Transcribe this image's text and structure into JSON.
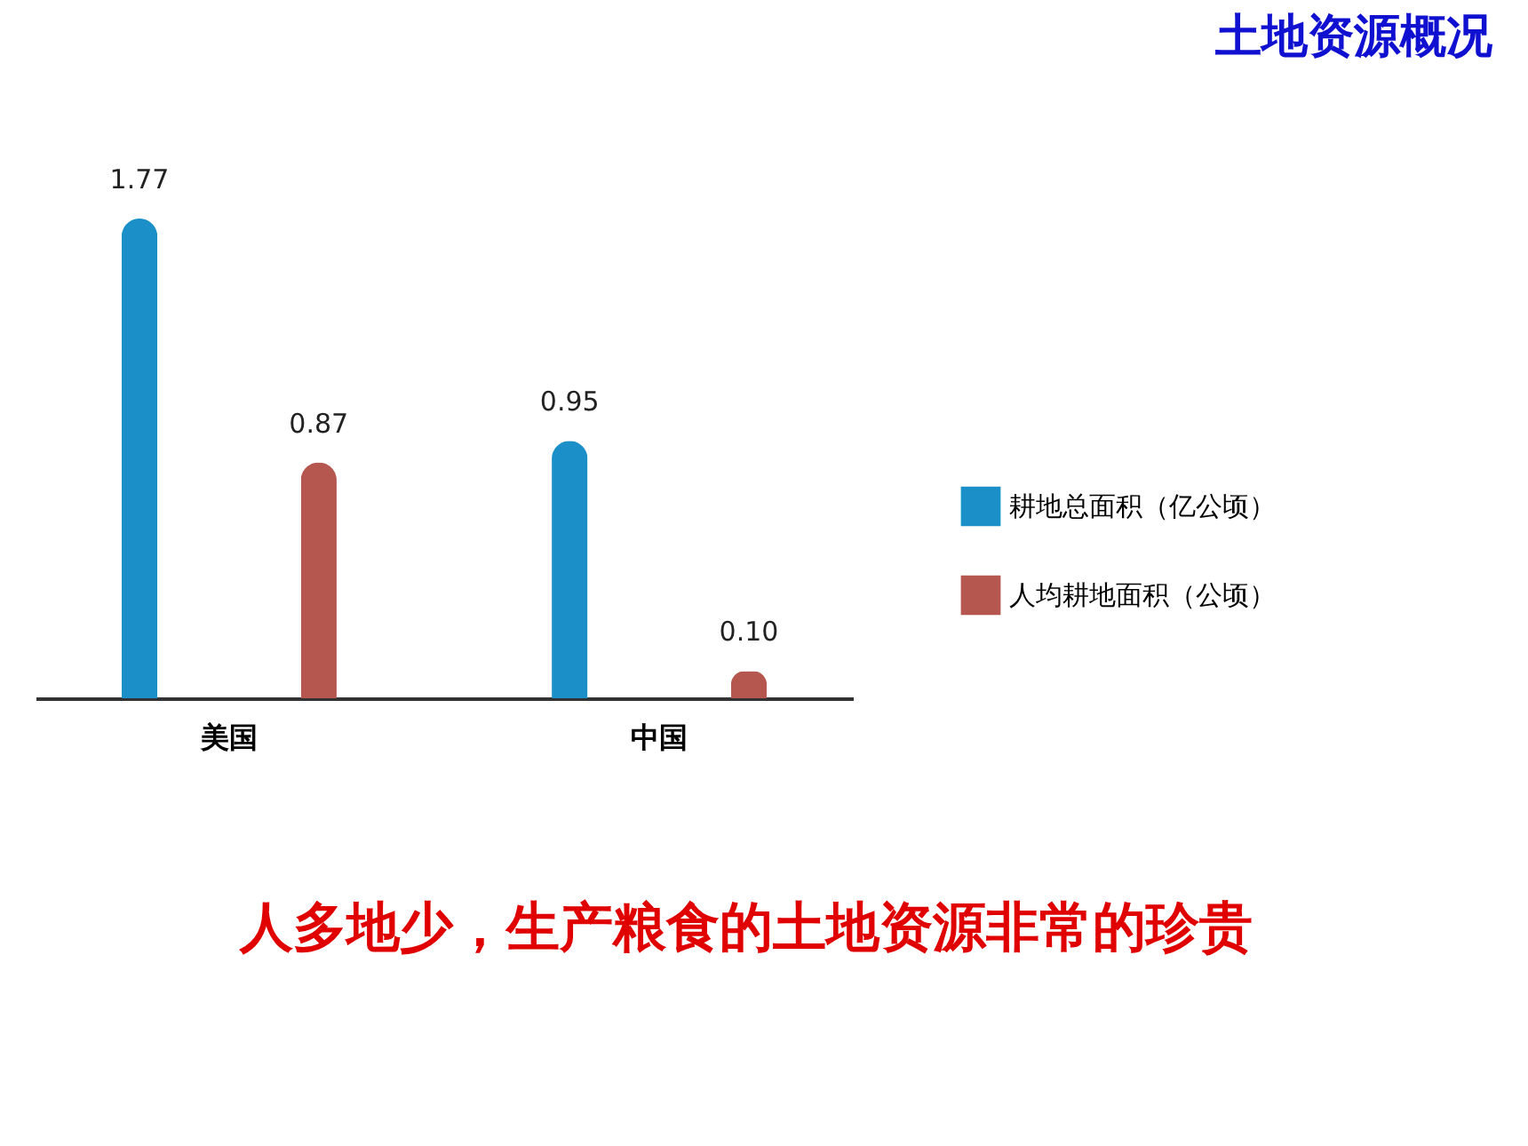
{
  "chart_data": {
    "type": "bar",
    "title": "土地资源概况",
    "categories": [
      "美国",
      "中国"
    ],
    "series": [
      {
        "name": "耕地总面积（亿公顷）",
        "color": "#1a8fc8",
        "values": [
          1.77,
          0.95
        ],
        "value_labels": [
          "1.77",
          "0.95"
        ]
      },
      {
        "name": "人均耕地面积（公顷）",
        "color": "#b5564f",
        "values": [
          0.87,
          0.1
        ],
        "value_labels": [
          "0.87",
          "0.10"
        ]
      }
    ],
    "legend": "right",
    "grid": false,
    "annotations": [
      "人多地少，生产粮食的土地资源非常的珍贵"
    ]
  }
}
